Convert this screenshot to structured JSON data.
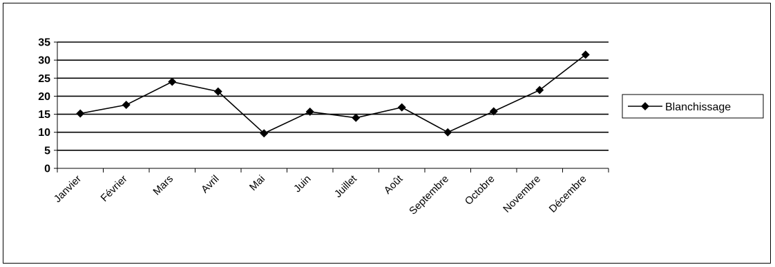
{
  "chart_data": {
    "type": "line",
    "categories": [
      "Janvier",
      "Février",
      "Mars",
      "Avril",
      "Mai",
      "Juin",
      "Juillet",
      "Août",
      "Septembre",
      "Octobre",
      "Novembre",
      "Décembre"
    ],
    "series": [
      {
        "name": "Blanchissage",
        "values": [
          15.2,
          17.6,
          24.0,
          21.3,
          9.7,
          15.7,
          14.0,
          16.9,
          10.0,
          15.8,
          21.7,
          31.5
        ],
        "color": "#000000",
        "marker": "diamond"
      }
    ],
    "y_ticks": [
      "0",
      "5",
      "10",
      "15",
      "20",
      "25",
      "30",
      "35"
    ],
    "ylim": [
      0,
      35
    ],
    "y_step": 5,
    "grid": "horizontal",
    "legend_position": "right",
    "title": "",
    "xlabel": "",
    "ylabel": ""
  }
}
